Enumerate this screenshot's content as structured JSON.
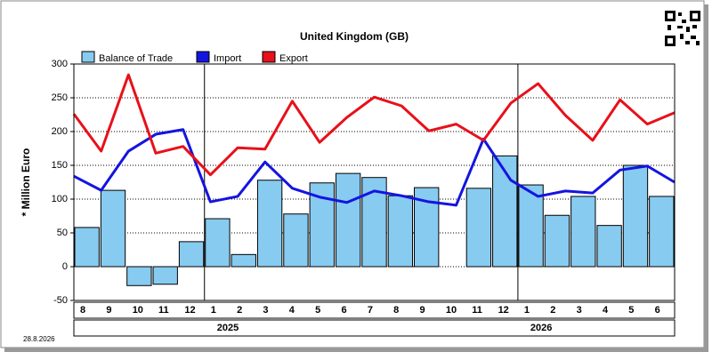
{
  "chart_data": {
    "type": "bar",
    "title": "United Kingdom (GB)",
    "y_label": "* Million Euro",
    "date": "28.8.2026",
    "categories": [
      "8",
      "9",
      "10",
      "11",
      "12",
      "1",
      "2",
      "3",
      "4",
      "5",
      "6",
      "7",
      "8",
      "9",
      "10",
      "11",
      "12",
      "1",
      "2",
      "3",
      "4",
      "5",
      "6"
    ],
    "years": [
      "2025",
      "2026"
    ],
    "series": [
      {
        "name": "Balance of Trade",
        "type": "bar",
        "color": "#87cbf0",
        "values": [
          58,
          113,
          -28,
          -26,
          37,
          71,
          18,
          128,
          78,
          124,
          138,
          132,
          105,
          117,
          null,
          116,
          164,
          121,
          76,
          104,
          61,
          150,
          104
        ]
      },
      {
        "name": "Import",
        "type": "line",
        "color": "#1414e0",
        "values": [
          134,
          113,
          171,
          196,
          203,
          96,
          104,
          155,
          116,
          103,
          95,
          112,
          105,
          96,
          91,
          189,
          128,
          104,
          112,
          109,
          143,
          149,
          125
        ]
      },
      {
        "name": "Export",
        "type": "line",
        "color": "#e8101a",
        "values": [
          226,
          171,
          284,
          168,
          178,
          136,
          176,
          174,
          245,
          184,
          221,
          251,
          238,
          201,
          211,
          187,
          242,
          271,
          224,
          187,
          247,
          211,
          228
        ]
      }
    ],
    "ylim": [
      -50,
      300
    ],
    "yticks": [
      -50,
      0,
      50,
      100,
      150,
      200,
      250,
      300
    ],
    "grid": true,
    "legend": "top"
  }
}
